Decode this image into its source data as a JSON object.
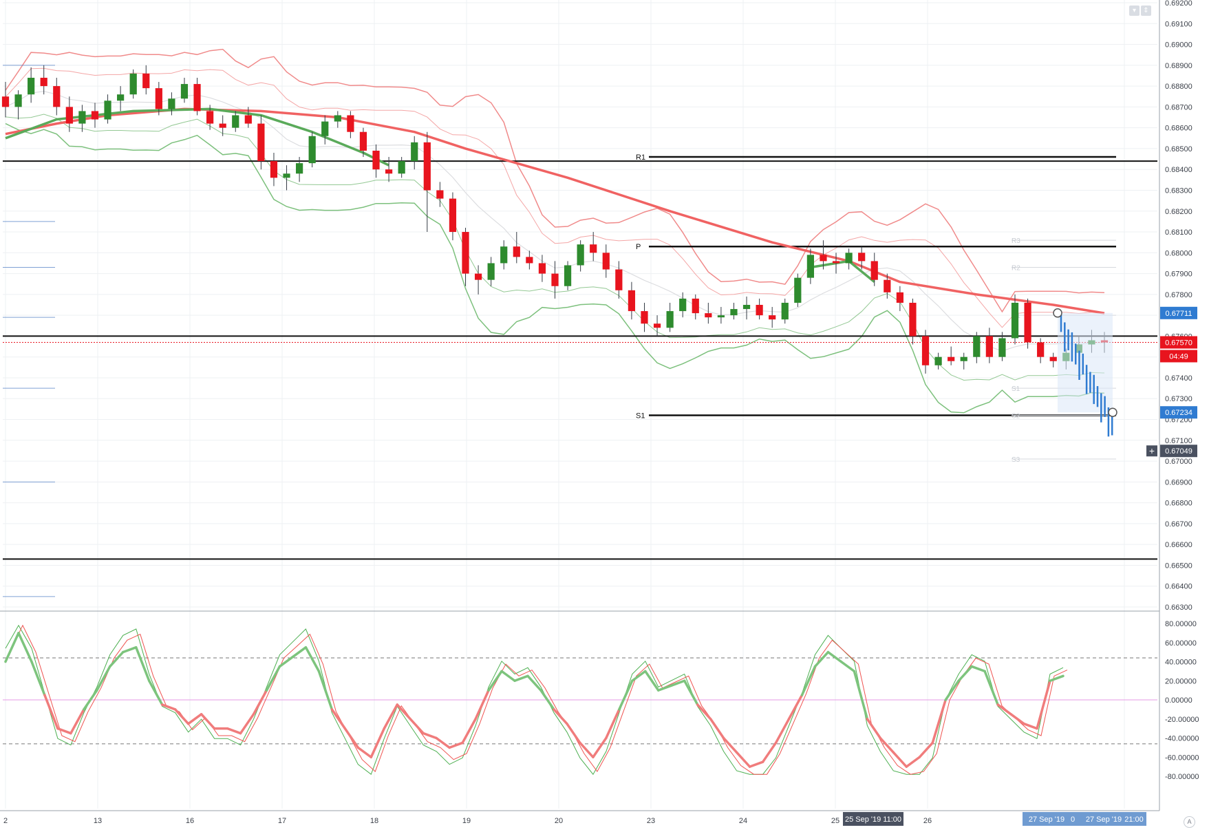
{
  "chart_data": {
    "type": "candlestick",
    "instrument_note": "",
    "price_axis": {
      "ylim": [
        0.663,
        0.692
      ],
      "ticks": [
        "0.66300",
        "0.66400",
        "0.66500",
        "0.66600",
        "0.66700",
        "0.66800",
        "0.66900",
        "0.67000",
        "0.67100",
        "0.67200",
        "0.67300",
        "0.67400",
        "0.67500",
        "0.67600",
        "0.67700",
        "0.67800",
        "0.67900",
        "0.68000",
        "0.68100",
        "0.68200",
        "0.68300",
        "0.68400",
        "0.68500",
        "0.68600",
        "0.68700",
        "0.68800",
        "0.68900",
        "0.69000",
        "0.69100",
        "0.69200"
      ]
    },
    "time_axis": {
      "ticks": [
        {
          "label": "2",
          "pos": 0.0
        },
        {
          "label": "13",
          "pos": 1.0
        },
        {
          "label": "16",
          "pos": 2.0
        },
        {
          "label": "17",
          "pos": 3.0
        },
        {
          "label": "18",
          "pos": 4.0
        },
        {
          "label": "19",
          "pos": 5.0
        },
        {
          "label": "20",
          "pos": 6.0
        },
        {
          "label": "23",
          "pos": 7.0
        },
        {
          "label": "24",
          "pos": 8.0
        },
        {
          "label": "25",
          "pos": 9.0
        },
        {
          "label": "26",
          "pos": 10.0
        }
      ],
      "crosshair_label": "25 Sep '19  11:00",
      "right_labels": [
        "27 Sep '19",
        "0",
        "27 Sep '19",
        "21:00"
      ]
    },
    "price_labels": {
      "upper_marker": "0.67711",
      "current_price": "0.67570",
      "countdown": "04:49",
      "lower_marker": "0.67234",
      "crosshair": "0.67049",
      "crosshair_plus": "+"
    },
    "horizontal_levels": [
      0.6844,
      0.676,
      0.6653
    ],
    "pivot_levels": [
      {
        "name": "R1",
        "value": 0.6846
      },
      {
        "name": "P",
        "value": 0.6803
      },
      {
        "name": "S1",
        "value": 0.6722
      }
    ],
    "faint_pivot_labels": [
      "R3",
      "R2",
      "R1",
      "S1",
      "S2",
      "S3"
    ],
    "candles": [
      [
        0.6875,
        0.6882,
        0.6865,
        0.687
      ],
      [
        0.687,
        0.6878,
        0.6864,
        0.6876
      ],
      [
        0.6876,
        0.6889,
        0.6872,
        0.6884
      ],
      [
        0.6884,
        0.689,
        0.6876,
        0.688
      ],
      [
        0.688,
        0.6884,
        0.6866,
        0.687
      ],
      [
        0.687,
        0.6875,
        0.6858,
        0.6862
      ],
      [
        0.6862,
        0.6871,
        0.6858,
        0.6868
      ],
      [
        0.6868,
        0.6872,
        0.686,
        0.6864
      ],
      [
        0.6864,
        0.6876,
        0.6862,
        0.6873
      ],
      [
        0.6873,
        0.688,
        0.6868,
        0.6876
      ],
      [
        0.6876,
        0.6888,
        0.6874,
        0.6886
      ],
      [
        0.6886,
        0.689,
        0.6876,
        0.6879
      ],
      [
        0.6879,
        0.6882,
        0.6866,
        0.6869
      ],
      [
        0.6869,
        0.6877,
        0.6866,
        0.6874
      ],
      [
        0.6874,
        0.6884,
        0.6872,
        0.6881
      ],
      [
        0.6881,
        0.6884,
        0.6866,
        0.6868
      ],
      [
        0.6868,
        0.6871,
        0.6859,
        0.6862
      ],
      [
        0.6862,
        0.6866,
        0.6856,
        0.686
      ],
      [
        0.686,
        0.6868,
        0.6858,
        0.6866
      ],
      [
        0.6866,
        0.687,
        0.686,
        0.6862
      ],
      [
        0.6862,
        0.6866,
        0.684,
        0.6844
      ],
      [
        0.6844,
        0.6848,
        0.6832,
        0.6836
      ],
      [
        0.6836,
        0.6842,
        0.683,
        0.6838
      ],
      [
        0.6838,
        0.6846,
        0.6834,
        0.6843
      ],
      [
        0.6843,
        0.6858,
        0.6841,
        0.6856
      ],
      [
        0.6856,
        0.6866,
        0.6852,
        0.6863
      ],
      [
        0.6863,
        0.6868,
        0.686,
        0.6866
      ],
      [
        0.6866,
        0.6868,
        0.6855,
        0.6858
      ],
      [
        0.6858,
        0.686,
        0.6846,
        0.6849
      ],
      [
        0.6849,
        0.6852,
        0.6836,
        0.684
      ],
      [
        0.684,
        0.6846,
        0.6834,
        0.6838
      ],
      [
        0.6838,
        0.6846,
        0.6836,
        0.6844
      ],
      [
        0.6844,
        0.6856,
        0.684,
        0.6853
      ],
      [
        0.6853,
        0.6858,
        0.681,
        0.683
      ],
      [
        0.683,
        0.6834,
        0.6822,
        0.6826
      ],
      [
        0.6826,
        0.6829,
        0.6806,
        0.681
      ],
      [
        0.681,
        0.6812,
        0.6784,
        0.679
      ],
      [
        0.679,
        0.6794,
        0.678,
        0.6787
      ],
      [
        0.6787,
        0.6798,
        0.6784,
        0.6795
      ],
      [
        0.6795,
        0.6806,
        0.6792,
        0.6803
      ],
      [
        0.6803,
        0.681,
        0.6795,
        0.6798
      ],
      [
        0.6798,
        0.6801,
        0.6792,
        0.6795
      ],
      [
        0.6795,
        0.6799,
        0.6786,
        0.679
      ],
      [
        0.679,
        0.6796,
        0.6778,
        0.6784
      ],
      [
        0.6784,
        0.6796,
        0.6782,
        0.6794
      ],
      [
        0.6794,
        0.6806,
        0.6791,
        0.6804
      ],
      [
        0.6804,
        0.681,
        0.6796,
        0.68
      ],
      [
        0.68,
        0.6804,
        0.6788,
        0.6792
      ],
      [
        0.6792,
        0.6796,
        0.6778,
        0.6782
      ],
      [
        0.6782,
        0.6786,
        0.6768,
        0.6772
      ],
      [
        0.6772,
        0.6776,
        0.6762,
        0.6766
      ],
      [
        0.6766,
        0.677,
        0.676,
        0.6764
      ],
      [
        0.6764,
        0.6776,
        0.6762,
        0.6772
      ],
      [
        0.6772,
        0.6781,
        0.6769,
        0.6778
      ],
      [
        0.6778,
        0.678,
        0.6768,
        0.6771
      ],
      [
        0.6771,
        0.6776,
        0.6766,
        0.6769
      ],
      [
        0.6769,
        0.6774,
        0.6766,
        0.677
      ],
      [
        0.677,
        0.6776,
        0.6768,
        0.6773
      ],
      [
        0.6773,
        0.6779,
        0.6768,
        0.6775
      ],
      [
        0.6775,
        0.6778,
        0.6768,
        0.677
      ],
      [
        0.677,
        0.6774,
        0.6764,
        0.6768
      ],
      [
        0.6768,
        0.6778,
        0.6766,
        0.6776
      ],
      [
        0.6776,
        0.679,
        0.6774,
        0.6788
      ],
      [
        0.6788,
        0.6802,
        0.6785,
        0.6799
      ],
      [
        0.6799,
        0.6806,
        0.6792,
        0.6796
      ],
      [
        0.6796,
        0.68,
        0.679,
        0.6795
      ],
      [
        0.6795,
        0.6802,
        0.6792,
        0.68
      ],
      [
        0.68,
        0.6803,
        0.6792,
        0.6796
      ],
      [
        0.6796,
        0.68,
        0.6784,
        0.6787
      ],
      [
        0.6787,
        0.679,
        0.6778,
        0.6781
      ],
      [
        0.6781,
        0.6784,
        0.6772,
        0.6776
      ],
      [
        0.6776,
        0.6778,
        0.6756,
        0.676
      ],
      [
        0.676,
        0.6763,
        0.6742,
        0.6746
      ],
      [
        0.6746,
        0.6752,
        0.6744,
        0.675
      ],
      [
        0.675,
        0.6755,
        0.6746,
        0.6748
      ],
      [
        0.6748,
        0.6752,
        0.6744,
        0.675
      ],
      [
        0.675,
        0.6762,
        0.6747,
        0.676
      ],
      [
        0.676,
        0.6764,
        0.6747,
        0.675
      ],
      [
        0.675,
        0.6762,
        0.6748,
        0.6759
      ],
      [
        0.6759,
        0.678,
        0.6756,
        0.6776
      ],
      [
        0.6776,
        0.6778,
        0.6754,
        0.6757
      ],
      [
        0.6757,
        0.6759,
        0.6747,
        0.675
      ],
      [
        0.675,
        0.6752,
        0.6745,
        0.6748
      ],
      [
        0.6748,
        0.6754,
        0.6744,
        0.6752
      ],
      [
        0.6752,
        0.676,
        0.6748,
        0.6756
      ],
      [
        0.6756,
        0.6763,
        0.6752,
        0.6758
      ],
      [
        0.6758,
        0.6762,
        0.6752,
        0.6757
      ]
    ],
    "ma_red_200": [
      [
        0,
        0.6857
      ],
      [
        4,
        0.6862
      ],
      [
        8,
        0.6866
      ],
      [
        14,
        0.6869
      ],
      [
        20,
        0.6868
      ],
      [
        26,
        0.6865
      ],
      [
        32,
        0.6858
      ],
      [
        36,
        0.685
      ],
      [
        44,
        0.6836
      ],
      [
        52,
        0.682
      ],
      [
        60,
        0.6805
      ],
      [
        66,
        0.6796
      ],
      [
        70,
        0.6786
      ],
      [
        76,
        0.678
      ],
      [
        82,
        0.6775
      ],
      [
        86,
        0.6771
      ]
    ],
    "ma_green": [
      [
        0,
        0.6855
      ],
      [
        4,
        0.6864
      ],
      [
        10,
        0.6868
      ],
      [
        16,
        0.6869
      ],
      [
        20,
        0.6866
      ],
      [
        24,
        0.6858
      ],
      [
        28,
        0.6848
      ],
      [
        30,
        0.6842
      ]
    ],
    "ma_green_2": [
      [
        63,
        0.6793
      ],
      [
        66,
        0.6796
      ],
      [
        68,
        0.6786
      ]
    ],
    "oscillator": {
      "ylim": [
        -80,
        80
      ],
      "ticks": [
        "80.00000",
        "60.00000",
        "40.00000",
        "20.00000",
        "0.00000",
        "-20.00000",
        "-40.00000",
        "-60.00000",
        "-80.00000"
      ],
      "levels": [
        44,
        -46
      ],
      "zero": 0,
      "thick": [
        [
          0,
          40
        ],
        [
          2,
          70
        ],
        [
          4,
          40
        ],
        [
          6,
          5
        ],
        [
          8,
          -30
        ],
        [
          10,
          -35
        ],
        [
          12,
          -10
        ],
        [
          14,
          10
        ],
        [
          16,
          35
        ],
        [
          18,
          50
        ],
        [
          20,
          55
        ],
        [
          22,
          20
        ],
        [
          24,
          -5
        ],
        [
          26,
          -10
        ],
        [
          28,
          -25
        ],
        [
          30,
          -15
        ],
        [
          32,
          -30
        ],
        [
          34,
          -30
        ],
        [
          36,
          -35
        ],
        [
          38,
          -15
        ],
        [
          40,
          10
        ],
        [
          42,
          35
        ],
        [
          44,
          45
        ],
        [
          46,
          55
        ],
        [
          48,
          30
        ],
        [
          50,
          -10
        ],
        [
          52,
          -30
        ],
        [
          54,
          -50
        ],
        [
          56,
          -60
        ],
        [
          58,
          -30
        ],
        [
          60,
          -5
        ],
        [
          62,
          -20
        ],
        [
          64,
          -35
        ],
        [
          66,
          -40
        ],
        [
          68,
          -50
        ],
        [
          70,
          -45
        ],
        [
          72,
          -20
        ],
        [
          74,
          10
        ],
        [
          76,
          30
        ],
        [
          78,
          20
        ],
        [
          80,
          25
        ],
        [
          82,
          10
        ],
        [
          84,
          -10
        ],
        [
          86,
          -25
        ],
        [
          88,
          -45
        ],
        [
          90,
          -60
        ],
        [
          92,
          -40
        ],
        [
          94,
          -10
        ],
        [
          96,
          20
        ],
        [
          98,
          30
        ],
        [
          100,
          10
        ],
        [
          102,
          15
        ],
        [
          104,
          20
        ],
        [
          106,
          -5
        ],
        [
          108,
          -20
        ],
        [
          110,
          -40
        ],
        [
          112,
          -55
        ],
        [
          114,
          -70
        ],
        [
          116,
          -65
        ],
        [
          118,
          -45
        ],
        [
          120,
          -20
        ],
        [
          122,
          5
        ],
        [
          124,
          35
        ],
        [
          126,
          50
        ],
        [
          128,
          40
        ],
        [
          130,
          30
        ],
        [
          132,
          -20
        ],
        [
          134,
          -40
        ],
        [
          136,
          -55
        ],
        [
          138,
          -70
        ],
        [
          140,
          -60
        ],
        [
          142,
          -45
        ],
        [
          144,
          0
        ],
        [
          146,
          20
        ],
        [
          148,
          35
        ],
        [
          150,
          30
        ],
        [
          152,
          -5
        ],
        [
          154,
          -15
        ],
        [
          156,
          -25
        ],
        [
          158,
          -30
        ],
        [
          160,
          20
        ],
        [
          162,
          25
        ]
      ]
    }
  }
}
